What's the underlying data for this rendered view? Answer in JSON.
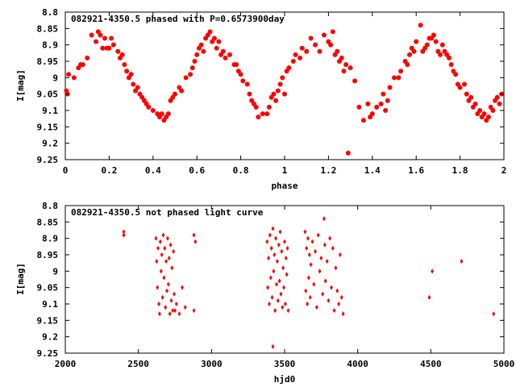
{
  "chart_data": [
    {
      "type": "scatter",
      "title": "082921-4350.5 phased with P=0.6573900day",
      "xlabel": "phase",
      "ylabel": "I[mag]",
      "xlim": [
        0,
        2
      ],
      "ylim": [
        9.25,
        8.8
      ],
      "y_inverted": true,
      "grid": false,
      "marker": "filled-circle",
      "color": "#ff0000",
      "xticks": [
        0,
        0.2,
        0.4,
        0.6,
        0.8,
        1,
        1.2,
        1.4,
        1.6,
        1.8,
        2
      ],
      "xtick_labels": [
        "0",
        "0.2",
        "0.4",
        "0.6",
        "0.8",
        "1",
        "1.2",
        "1.4",
        "1.6",
        "1.8",
        "2"
      ],
      "yticks": [
        8.8,
        8.85,
        8.9,
        8.95,
        9,
        9.05,
        9.1,
        9.15,
        9.2,
        9.25
      ],
      "ytick_labels": [
        "8.8",
        "8.85",
        "8.9",
        "8.95",
        "9",
        "9.05",
        "9.1",
        "9.15",
        "9.2",
        "9.25"
      ],
      "points": [
        [
          0.005,
          9.04
        ],
        [
          0.01,
          9.05
        ],
        [
          0.015,
          8.99
        ],
        [
          0.04,
          9.0
        ],
        [
          0.06,
          8.97
        ],
        [
          0.07,
          8.96
        ],
        [
          0.08,
          8.96
        ],
        [
          0.1,
          8.94
        ],
        [
          0.12,
          8.87
        ],
        [
          0.14,
          8.89
        ],
        [
          0.15,
          8.86
        ],
        [
          0.16,
          8.87
        ],
        [
          0.17,
          8.91
        ],
        [
          0.18,
          8.88
        ],
        [
          0.19,
          8.91
        ],
        [
          0.2,
          8.91
        ],
        [
          0.21,
          8.88
        ],
        [
          0.22,
          8.9
        ],
        [
          0.24,
          8.92
        ],
        [
          0.25,
          8.94
        ],
        [
          0.26,
          8.93
        ],
        [
          0.27,
          8.96
        ],
        [
          0.28,
          8.98
        ],
        [
          0.29,
          9.0
        ],
        [
          0.3,
          8.99
        ],
        [
          0.31,
          9.02
        ],
        [
          0.32,
          9.04
        ],
        [
          0.33,
          9.03
        ],
        [
          0.34,
          9.05
        ],
        [
          0.35,
          9.06
        ],
        [
          0.36,
          9.07
        ],
        [
          0.37,
          9.08
        ],
        [
          0.38,
          9.09
        ],
        [
          0.4,
          9.1
        ],
        [
          0.42,
          9.11
        ],
        [
          0.43,
          9.12
        ],
        [
          0.44,
          9.11
        ],
        [
          0.45,
          9.13
        ],
        [
          0.46,
          9.12
        ],
        [
          0.47,
          9.11
        ],
        [
          0.48,
          9.07
        ],
        [
          0.49,
          9.06
        ],
        [
          0.5,
          9.05
        ],
        [
          0.52,
          9.03
        ],
        [
          0.53,
          9.04
        ],
        [
          0.55,
          9.0
        ],
        [
          0.57,
          8.99
        ],
        [
          0.58,
          8.97
        ],
        [
          0.59,
          8.95
        ],
        [
          0.6,
          8.93
        ],
        [
          0.61,
          8.91
        ],
        [
          0.62,
          8.9
        ],
        [
          0.63,
          8.92
        ],
        [
          0.64,
          8.88
        ],
        [
          0.65,
          8.87
        ],
        [
          0.66,
          8.86
        ],
        [
          0.67,
          8.89
        ],
        [
          0.68,
          8.88
        ],
        [
          0.69,
          8.91
        ],
        [
          0.7,
          8.89
        ],
        [
          0.71,
          8.93
        ],
        [
          0.72,
          8.92
        ],
        [
          0.73,
          8.94
        ],
        [
          0.75,
          8.93
        ],
        [
          0.77,
          8.96
        ],
        [
          0.78,
          8.96
        ],
        [
          0.79,
          8.98
        ],
        [
          0.8,
          8.99
        ],
        [
          0.81,
          9.01
        ],
        [
          0.83,
          9.02
        ],
        [
          0.84,
          9.05
        ],
        [
          0.85,
          9.07
        ],
        [
          0.86,
          9.08
        ],
        [
          0.87,
          9.09
        ],
        [
          0.88,
          9.12
        ],
        [
          0.9,
          9.11
        ],
        [
          0.92,
          9.11
        ],
        [
          0.93,
          9.09
        ],
        [
          0.94,
          9.06
        ],
        [
          0.95,
          9.05
        ],
        [
          0.96,
          9.07
        ],
        [
          0.97,
          9.04
        ],
        [
          0.98,
          9.02
        ],
        [
          0.99,
          9.0
        ],
        [
          1.0,
          9.05
        ],
        [
          1.01,
          8.98
        ],
        [
          1.02,
          8.97
        ],
        [
          1.04,
          8.95
        ],
        [
          1.05,
          8.93
        ],
        [
          1.07,
          8.94
        ],
        [
          1.08,
          8.91
        ],
        [
          1.1,
          8.92
        ],
        [
          1.12,
          8.88
        ],
        [
          1.14,
          8.9
        ],
        [
          1.16,
          8.92
        ],
        [
          1.18,
          8.87
        ],
        [
          1.2,
          8.89
        ],
        [
          1.21,
          8.9
        ],
        [
          1.22,
          8.86
        ],
        [
          1.23,
          8.93
        ],
        [
          1.24,
          8.92
        ],
        [
          1.25,
          8.95
        ],
        [
          1.26,
          8.94
        ],
        [
          1.27,
          8.98
        ],
        [
          1.28,
          8.96
        ],
        [
          1.29,
          9.23
        ],
        [
          1.3,
          8.97
        ],
        [
          1.32,
          9.01
        ],
        [
          1.34,
          9.09
        ],
        [
          1.36,
          9.13
        ],
        [
          1.38,
          9.08
        ],
        [
          1.39,
          9.12
        ],
        [
          1.4,
          9.11
        ],
        [
          1.42,
          9.09
        ],
        [
          1.44,
          9.08
        ],
        [
          1.45,
          9.05
        ],
        [
          1.46,
          9.1
        ],
        [
          1.47,
          9.07
        ],
        [
          1.48,
          9.03
        ],
        [
          1.5,
          9.0
        ],
        [
          1.52,
          9.0
        ],
        [
          1.53,
          8.98
        ],
        [
          1.55,
          8.95
        ],
        [
          1.56,
          8.96
        ],
        [
          1.57,
          8.93
        ],
        [
          1.58,
          8.91
        ],
        [
          1.59,
          8.92
        ],
        [
          1.6,
          8.89
        ],
        [
          1.62,
          8.84
        ],
        [
          1.63,
          8.92
        ],
        [
          1.64,
          8.91
        ],
        [
          1.65,
          8.9
        ],
        [
          1.66,
          8.88
        ],
        [
          1.67,
          8.88
        ],
        [
          1.68,
          8.87
        ],
        [
          1.69,
          8.89
        ],
        [
          1.7,
          8.92
        ],
        [
          1.71,
          8.93
        ],
        [
          1.72,
          8.9
        ],
        [
          1.73,
          8.92
        ],
        [
          1.74,
          8.93
        ],
        [
          1.75,
          8.94
        ],
        [
          1.76,
          8.96
        ],
        [
          1.77,
          8.98
        ],
        [
          1.78,
          8.99
        ],
        [
          1.79,
          9.02
        ],
        [
          1.8,
          9.03
        ],
        [
          1.82,
          9.02
        ],
        [
          1.83,
          9.05
        ],
        [
          1.84,
          9.07
        ],
        [
          1.85,
          9.06
        ],
        [
          1.86,
          9.09
        ],
        [
          1.87,
          9.08
        ],
        [
          1.88,
          9.11
        ],
        [
          1.89,
          9.1
        ],
        [
          1.9,
          9.12
        ],
        [
          1.91,
          9.11
        ],
        [
          1.92,
          9.13
        ],
        [
          1.93,
          9.12
        ],
        [
          1.94,
          9.09
        ],
        [
          1.95,
          9.1
        ],
        [
          1.96,
          9.07
        ],
        [
          1.97,
          9.06
        ],
        [
          1.98,
          9.08
        ],
        [
          1.99,
          9.05
        ]
      ]
    },
    {
      "type": "scatter",
      "title": "082921-4350.5 not phased light curve",
      "xlabel": "hjd0",
      "ylabel": "I[mag]",
      "xlim": [
        2000,
        5000
      ],
      "ylim": [
        9.25,
        8.8
      ],
      "y_inverted": true,
      "grid": false,
      "marker": "small-diamond",
      "color": "#ff0000",
      "xticks": [
        2000,
        2500,
        3000,
        3500,
        4000,
        4500,
        5000
      ],
      "xtick_labels": [
        "2000",
        "2500",
        "3000",
        "3500",
        "4000",
        "4500",
        "5000"
      ],
      "yticks": [
        8.8,
        8.85,
        8.9,
        8.95,
        9,
        9.05,
        9.1,
        9.15,
        9.2,
        9.25
      ],
      "ytick_labels": [
        "8.8",
        "8.85",
        "8.9",
        "8.95",
        "9",
        "9.05",
        "9.1",
        "9.15",
        "9.2",
        "9.25"
      ],
      "points": [
        [
          2400,
          8.88
        ],
        [
          2400,
          8.89
        ],
        [
          2620,
          8.9
        ],
        [
          2625,
          8.97
        ],
        [
          2630,
          9.05
        ],
        [
          2635,
          8.93
        ],
        [
          2640,
          9.1
        ],
        [
          2645,
          9.13
        ],
        [
          2650,
          8.91
        ],
        [
          2655,
          9.0
        ],
        [
          2660,
          8.95
        ],
        [
          2665,
          9.08
        ],
        [
          2670,
          8.89
        ],
        [
          2675,
          9.02
        ],
        [
          2680,
          8.93
        ],
        [
          2685,
          9.11
        ],
        [
          2690,
          8.97
        ],
        [
          2695,
          9.06
        ],
        [
          2700,
          8.9
        ],
        [
          2705,
          9.04
        ],
        [
          2710,
          8.96
        ],
        [
          2715,
          9.13
        ],
        [
          2720,
          8.92
        ],
        [
          2725,
          9.09
        ],
        [
          2730,
          8.99
        ],
        [
          2735,
          9.12
        ],
        [
          2740,
          8.94
        ],
        [
          2745,
          9.07
        ],
        [
          2750,
          9.12
        ],
        [
          2760,
          9.1
        ],
        [
          2780,
          9.13
        ],
        [
          2800,
          9.05
        ],
        [
          2820,
          9.11
        ],
        [
          2880,
          9.12
        ],
        [
          2880,
          8.89
        ],
        [
          2890,
          8.91
        ],
        [
          3380,
          8.91
        ],
        [
          3385,
          9.05
        ],
        [
          3390,
          8.96
        ],
        [
          3395,
          9.1
        ],
        [
          3400,
          8.89
        ],
        [
          3405,
          9.02
        ],
        [
          3410,
          8.93
        ],
        [
          3415,
          9.08
        ],
        [
          3420,
          9.23
        ],
        [
          3420,
          8.87
        ],
        [
          3425,
          9.0
        ],
        [
          3430,
          8.95
        ],
        [
          3435,
          9.12
        ],
        [
          3440,
          8.9
        ],
        [
          3445,
          9.04
        ],
        [
          3450,
          8.97
        ],
        [
          3455,
          9.09
        ],
        [
          3460,
          8.92
        ],
        [
          3465,
          9.03
        ],
        [
          3470,
          8.88
        ],
        [
          3475,
          9.07
        ],
        [
          3480,
          8.94
        ],
        [
          3485,
          9.11
        ],
        [
          3490,
          8.99
        ],
        [
          3495,
          9.05
        ],
        [
          3500,
          8.91
        ],
        [
          3505,
          9.1
        ],
        [
          3510,
          8.96
        ],
        [
          3515,
          9.01
        ],
        [
          3520,
          8.93
        ],
        [
          3525,
          9.12
        ],
        [
          3640,
          8.88
        ],
        [
          3645,
          9.06
        ],
        [
          3650,
          8.93
        ],
        [
          3655,
          9.1
        ],
        [
          3660,
          8.9
        ],
        [
          3665,
          9.02
        ],
        [
          3670,
          8.95
        ],
        [
          3675,
          9.08
        ],
        [
          3680,
          8.98
        ],
        [
          3690,
          8.91
        ],
        [
          3700,
          9.04
        ],
        [
          3710,
          8.94
        ],
        [
          3720,
          9.11
        ],
        [
          3730,
          8.89
        ],
        [
          3740,
          9.0
        ],
        [
          3750,
          8.96
        ],
        [
          3760,
          9.07
        ],
        [
          3770,
          8.84
        ],
        [
          3775,
          8.92
        ],
        [
          3780,
          9.03
        ],
        [
          3790,
          8.97
        ],
        [
          3800,
          9.09
        ],
        [
          3810,
          8.9
        ],
        [
          3820,
          9.05
        ],
        [
          3830,
          8.93
        ],
        [
          3840,
          9.12
        ],
        [
          3850,
          8.99
        ],
        [
          3860,
          9.06
        ],
        [
          3870,
          9.1
        ],
        [
          3880,
          8.95
        ],
        [
          3890,
          9.08
        ],
        [
          3900,
          9.13
        ],
        [
          4490,
          9.08
        ],
        [
          4510,
          9.0
        ],
        [
          4710,
          8.97
        ],
        [
          4930,
          9.13
        ]
      ]
    }
  ]
}
